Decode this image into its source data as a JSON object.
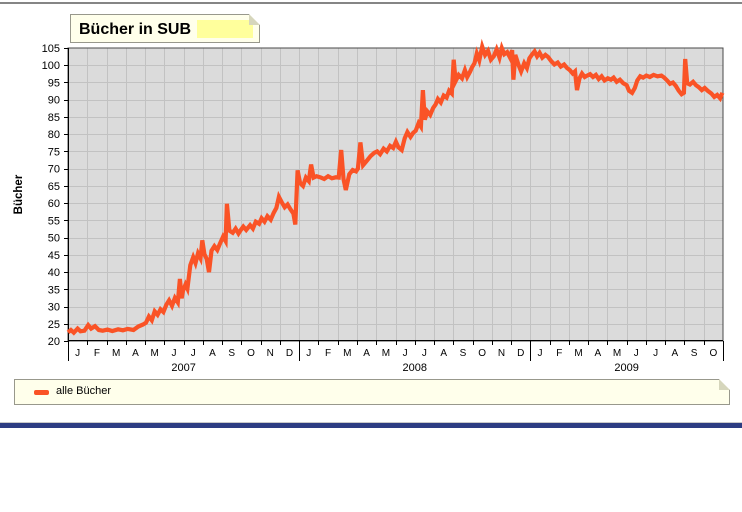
{
  "header": {
    "title": "Bücher in SUB"
  },
  "chart_data": {
    "type": "line",
    "title": "Bücher in SUB",
    "xlabel": "",
    "ylabel": "Bücher",
    "ylim": [
      20,
      105
    ],
    "yticks": [
      20,
      25,
      30,
      35,
      40,
      45,
      50,
      55,
      60,
      65,
      70,
      75,
      80,
      85,
      90,
      95,
      100,
      105
    ],
    "grid": true,
    "plot_bg": "#DBDBDB",
    "grid_color": "#C2C2C2",
    "legend_position": "bottom",
    "years": [
      {
        "label": "2007",
        "months": [
          "J",
          "F",
          "M",
          "A",
          "M",
          "J",
          "J",
          "A",
          "S",
          "O",
          "N",
          "D"
        ]
      },
      {
        "label": "2008",
        "months": [
          "J",
          "F",
          "M",
          "A",
          "M",
          "J",
          "J",
          "A",
          "S",
          "O",
          "N",
          "D"
        ]
      },
      {
        "label": "2009",
        "months": [
          "J",
          "F",
          "M",
          "A",
          "M",
          "J",
          "J",
          "A",
          "S",
          "O"
        ]
      }
    ],
    "series": [
      {
        "name": "alle Bücher",
        "color": "#FA5326",
        "points": [
          [
            0.0,
            22.5
          ],
          [
            0.15,
            23.2
          ],
          [
            0.3,
            22.4
          ],
          [
            0.5,
            23.6
          ],
          [
            0.65,
            22.8
          ],
          [
            0.85,
            23.0
          ],
          [
            1.05,
            24.6
          ],
          [
            1.2,
            23.6
          ],
          [
            1.4,
            24.3
          ],
          [
            1.6,
            23.2
          ],
          [
            1.8,
            23.0
          ],
          [
            2.05,
            23.3
          ],
          [
            2.3,
            22.9
          ],
          [
            2.6,
            23.4
          ],
          [
            2.85,
            23.1
          ],
          [
            3.1,
            23.5
          ],
          [
            3.4,
            23.2
          ],
          [
            3.65,
            24.2
          ],
          [
            3.9,
            24.8
          ],
          [
            4.05,
            25.3
          ],
          [
            4.2,
            27.1
          ],
          [
            4.35,
            26.0
          ],
          [
            4.5,
            28.6
          ],
          [
            4.65,
            27.6
          ],
          [
            4.8,
            29.2
          ],
          [
            4.95,
            28.4
          ],
          [
            5.1,
            30.5
          ],
          [
            5.25,
            31.8
          ],
          [
            5.4,
            30.2
          ],
          [
            5.55,
            32.5
          ],
          [
            5.7,
            31.2
          ],
          [
            5.81,
            38.0
          ],
          [
            5.9,
            32.4
          ],
          [
            5.97,
            34.6
          ],
          [
            6.1,
            36.4
          ],
          [
            6.2,
            35.2
          ],
          [
            6.35,
            42.0
          ],
          [
            6.5,
            44.3
          ],
          [
            6.62,
            42.6
          ],
          [
            6.75,
            45.4
          ],
          [
            6.88,
            44.0
          ],
          [
            6.97,
            49.2
          ],
          [
            7.08,
            45.2
          ],
          [
            7.2,
            43.8
          ],
          [
            7.32,
            40.0
          ],
          [
            7.45,
            46.2
          ],
          [
            7.6,
            47.5
          ],
          [
            7.75,
            46.4
          ],
          [
            7.9,
            48.4
          ],
          [
            8.05,
            50.3
          ],
          [
            8.18,
            49.0
          ],
          [
            8.25,
            59.8
          ],
          [
            8.38,
            52.0
          ],
          [
            8.55,
            51.4
          ],
          [
            8.7,
            52.6
          ],
          [
            8.85,
            51.2
          ],
          [
            8.97,
            52.2
          ],
          [
            9.1,
            53.2
          ],
          [
            9.25,
            52.2
          ],
          [
            9.45,
            53.6
          ],
          [
            9.6,
            52.6
          ],
          [
            9.75,
            54.6
          ],
          [
            9.92,
            54.0
          ],
          [
            10.05,
            55.6
          ],
          [
            10.2,
            54.6
          ],
          [
            10.35,
            56.2
          ],
          [
            10.52,
            55.2
          ],
          [
            10.68,
            57.2
          ],
          [
            10.82,
            58.6
          ],
          [
            10.95,
            61.8
          ],
          [
            11.1,
            60.2
          ],
          [
            11.25,
            58.8
          ],
          [
            11.4,
            59.6
          ],
          [
            11.55,
            58.2
          ],
          [
            11.7,
            57.0
          ],
          [
            11.8,
            53.8
          ],
          [
            11.92,
            69.5
          ],
          [
            12.05,
            65.8
          ],
          [
            12.2,
            65.0
          ],
          [
            12.35,
            67.4
          ],
          [
            12.5,
            66.4
          ],
          [
            12.62,
            71.2
          ],
          [
            12.75,
            67.4
          ],
          [
            12.9,
            67.8
          ],
          [
            13.1,
            67.5
          ],
          [
            13.3,
            67.0
          ],
          [
            13.5,
            67.8
          ],
          [
            13.7,
            67.2
          ],
          [
            13.9,
            67.5
          ],
          [
            14.05,
            67.4
          ],
          [
            14.18,
            75.4
          ],
          [
            14.3,
            67.0
          ],
          [
            14.42,
            63.8
          ],
          [
            14.6,
            68.4
          ],
          [
            14.78,
            69.6
          ],
          [
            14.95,
            69.2
          ],
          [
            15.05,
            70.0
          ],
          [
            15.18,
            77.6
          ],
          [
            15.32,
            71.0
          ],
          [
            15.5,
            72.2
          ],
          [
            15.7,
            73.6
          ],
          [
            15.9,
            74.6
          ],
          [
            16.05,
            75.0
          ],
          [
            16.2,
            74.2
          ],
          [
            16.38,
            75.8
          ],
          [
            16.55,
            75.0
          ],
          [
            16.72,
            76.6
          ],
          [
            16.88,
            76.0
          ],
          [
            17.02,
            77.8
          ],
          [
            17.15,
            76.2
          ],
          [
            17.32,
            75.4
          ],
          [
            17.48,
            78.8
          ],
          [
            17.62,
            80.6
          ],
          [
            17.78,
            79.2
          ],
          [
            17.92,
            80.4
          ],
          [
            18.05,
            81.0
          ],
          [
            18.2,
            83.2
          ],
          [
            18.32,
            82.2
          ],
          [
            18.42,
            92.8
          ],
          [
            18.52,
            84.2
          ],
          [
            18.65,
            86.6
          ],
          [
            18.8,
            85.6
          ],
          [
            18.95,
            87.6
          ],
          [
            19.08,
            88.6
          ],
          [
            19.2,
            90.2
          ],
          [
            19.35,
            89.2
          ],
          [
            19.5,
            91.2
          ],
          [
            19.65,
            90.6
          ],
          [
            19.78,
            92.6
          ],
          [
            19.92,
            91.8
          ],
          [
            20.02,
            101.6
          ],
          [
            20.12,
            95.4
          ],
          [
            20.28,
            97.2
          ],
          [
            20.45,
            96.2
          ],
          [
            20.6,
            98.6
          ],
          [
            20.72,
            96.6
          ],
          [
            20.88,
            98.2
          ],
          [
            20.97,
            99.4
          ],
          [
            21.1,
            100.6
          ],
          [
            21.22,
            103.4
          ],
          [
            21.35,
            101.4
          ],
          [
            21.5,
            105.4
          ],
          [
            21.65,
            103.0
          ],
          [
            21.8,
            104.2
          ],
          [
            21.95,
            101.6
          ],
          [
            22.1,
            102.6
          ],
          [
            22.25,
            104.6
          ],
          [
            22.4,
            102.2
          ],
          [
            22.52,
            105.0
          ],
          [
            22.65,
            103.2
          ],
          [
            22.8,
            103.8
          ],
          [
            22.95,
            102.2
          ],
          [
            23.05,
            104.4
          ],
          [
            23.12,
            95.8
          ],
          [
            23.22,
            103.0
          ],
          [
            23.38,
            100.2
          ],
          [
            23.52,
            98.2
          ],
          [
            23.68,
            100.6
          ],
          [
            23.82,
            99.2
          ],
          [
            23.95,
            102.0
          ],
          [
            24.1,
            103.2
          ],
          [
            24.22,
            104.0
          ],
          [
            24.35,
            102.6
          ],
          [
            24.48,
            103.6
          ],
          [
            24.62,
            102.2
          ],
          [
            24.78,
            103.0
          ],
          [
            24.92,
            102.4
          ],
          [
            25.08,
            101.2
          ],
          [
            25.25,
            100.2
          ],
          [
            25.42,
            100.8
          ],
          [
            25.58,
            99.6
          ],
          [
            25.75,
            100.2
          ],
          [
            25.9,
            99.2
          ],
          [
            26.05,
            98.6
          ],
          [
            26.2,
            97.6
          ],
          [
            26.32,
            98.2
          ],
          [
            26.42,
            92.8
          ],
          [
            26.55,
            96.2
          ],
          [
            26.68,
            97.6
          ],
          [
            26.82,
            96.6
          ],
          [
            26.95,
            97.0
          ],
          [
            27.1,
            97.4
          ],
          [
            27.25,
            96.6
          ],
          [
            27.4,
            97.2
          ],
          [
            27.55,
            96.0
          ],
          [
            27.7,
            96.8
          ],
          [
            27.85,
            95.6
          ],
          [
            28.02,
            96.2
          ],
          [
            28.18,
            95.8
          ],
          [
            28.32,
            96.4
          ],
          [
            28.48,
            95.2
          ],
          [
            28.65,
            95.8
          ],
          [
            28.82,
            94.8
          ],
          [
            29.0,
            94.2
          ],
          [
            29.12,
            92.6
          ],
          [
            29.28,
            92.0
          ],
          [
            29.42,
            93.4
          ],
          [
            29.55,
            95.6
          ],
          [
            29.7,
            96.8
          ],
          [
            29.85,
            96.4
          ],
          [
            30.02,
            97.0
          ],
          [
            30.2,
            96.6
          ],
          [
            30.4,
            97.2
          ],
          [
            30.6,
            96.8
          ],
          [
            30.8,
            97.0
          ],
          [
            30.95,
            96.4
          ],
          [
            31.1,
            95.6
          ],
          [
            31.25,
            94.6
          ],
          [
            31.4,
            95.0
          ],
          [
            31.55,
            94.0
          ],
          [
            31.7,
            92.6
          ],
          [
            31.85,
            91.6
          ],
          [
            31.97,
            92.0
          ],
          [
            32.04,
            101.8
          ],
          [
            32.14,
            94.8
          ],
          [
            32.28,
            94.4
          ],
          [
            32.45,
            95.2
          ],
          [
            32.6,
            94.2
          ],
          [
            32.75,
            93.6
          ],
          [
            32.9,
            92.8
          ],
          [
            33.05,
            93.4
          ],
          [
            33.2,
            92.6
          ],
          [
            33.4,
            91.8
          ],
          [
            33.55,
            90.8
          ],
          [
            33.7,
            91.4
          ],
          [
            33.85,
            90.4
          ],
          [
            33.97,
            92.0
          ]
        ]
      }
    ]
  },
  "legend": {
    "items": [
      {
        "label": "alle Bücher",
        "color": "#FA5326"
      }
    ]
  },
  "colors": {
    "accent_line": "#FA5326",
    "title_highlight": "#FFFF9C",
    "note_bg": "#FFFFEB",
    "navy_bar": "#2D3C82",
    "top_bar": "#858585"
  }
}
